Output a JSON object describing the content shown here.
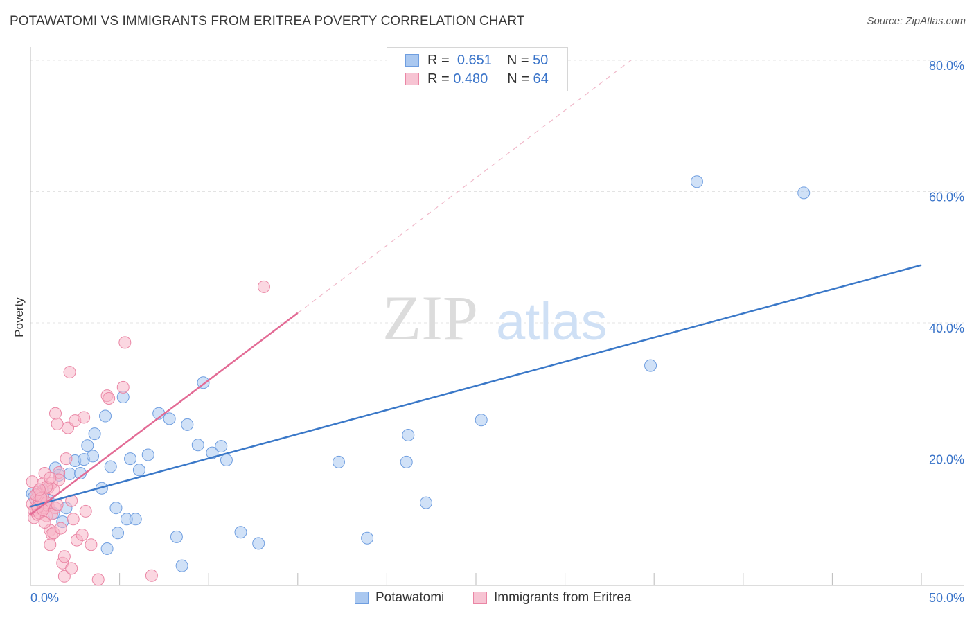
{
  "title": "POTAWATOMI VS IMMIGRANTS FROM ERITREA POVERTY CORRELATION CHART",
  "source": "Source: ZipAtlas.com",
  "watermark": {
    "zip": "ZIP",
    "atlas": "atlas"
  },
  "colors": {
    "blue_fill": "#aac8f0",
    "blue_stroke": "#6f9ee0",
    "blue_line": "#3a78c8",
    "pink_fill": "#f7b6c9",
    "pink_stroke": "#ea86a5",
    "pink_line": "#e36b95",
    "axis_text": "#3a74c9",
    "grid": "#e3e3e3"
  },
  "legend": {
    "rows": [
      {
        "r_label": "R =",
        "r_value": "0.651",
        "n_label": "N =",
        "n_value": "50"
      },
      {
        "r_label": "R =",
        "r_value": "0.480",
        "n_label": "N =",
        "n_value": "64"
      }
    ]
  },
  "bottom_legend": {
    "series1": "Potawatomi",
    "series2": "Immigrants from Eritrea"
  },
  "chart_data": {
    "type": "scatter",
    "title": "POTAWATOMI VS IMMIGRANTS FROM ERITREA POVERTY CORRELATION CHART",
    "xlabel": "",
    "ylabel": "Poverty",
    "xlim": [
      0,
      50
    ],
    "ylim": [
      0,
      80
    ],
    "x_tick_labels": [
      "0.0%",
      "50.0%"
    ],
    "y_tick_labels": [
      "20.0%",
      "40.0%",
      "60.0%",
      "80.0%"
    ],
    "y_ticks": [
      20,
      40,
      60,
      80
    ],
    "grid": true,
    "series": [
      {
        "name": "Potawatomi",
        "r": 0.651,
        "n": 50,
        "trend": {
          "x0": 0,
          "y0": 12.0,
          "x1": 50,
          "y1": 48.8
        },
        "points": [
          [
            0.1,
            14.0
          ],
          [
            0.2,
            13.5
          ],
          [
            0.5,
            12.9
          ],
          [
            0.7,
            14.5
          ],
          [
            1.0,
            13.0
          ],
          [
            1.3,
            11.0
          ],
          [
            1.4,
            17.9
          ],
          [
            1.6,
            16.8
          ],
          [
            1.8,
            9.7
          ],
          [
            2.0,
            11.8
          ],
          [
            2.2,
            17.0
          ],
          [
            2.5,
            19.0
          ],
          [
            2.8,
            17.1
          ],
          [
            3.0,
            19.2
          ],
          [
            3.2,
            21.3
          ],
          [
            3.5,
            19.7
          ],
          [
            3.6,
            23.1
          ],
          [
            4.0,
            14.8
          ],
          [
            4.2,
            25.8
          ],
          [
            4.3,
            5.6
          ],
          [
            4.5,
            18.1
          ],
          [
            4.8,
            11.8
          ],
          [
            4.9,
            8.0
          ],
          [
            5.2,
            28.7
          ],
          [
            5.4,
            10.1
          ],
          [
            5.6,
            19.3
          ],
          [
            5.9,
            10.1
          ],
          [
            6.1,
            17.6
          ],
          [
            6.6,
            19.9
          ],
          [
            7.2,
            26.2
          ],
          [
            7.8,
            25.4
          ],
          [
            8.2,
            7.4
          ],
          [
            8.5,
            3.0
          ],
          [
            8.8,
            24.5
          ],
          [
            9.4,
            21.4
          ],
          [
            9.7,
            30.9
          ],
          [
            10.2,
            20.2
          ],
          [
            10.7,
            21.2
          ],
          [
            11.0,
            19.1
          ],
          [
            11.8,
            8.1
          ],
          [
            12.8,
            6.4
          ],
          [
            17.3,
            18.8
          ],
          [
            18.9,
            7.2
          ],
          [
            21.1,
            18.8
          ],
          [
            21.2,
            22.9
          ],
          [
            22.2,
            12.6
          ],
          [
            25.3,
            25.2
          ],
          [
            34.8,
            33.5
          ],
          [
            37.4,
            61.5
          ],
          [
            43.4,
            59.8
          ]
        ]
      },
      {
        "name": "Immigrants from Eritrea",
        "r": 0.48,
        "n": 64,
        "trend": {
          "x0": 0,
          "y0": 10.8,
          "x1": 15.0,
          "y1": 41.5
        },
        "trend_extension": {
          "x0": 15.0,
          "y0": 41.5,
          "x1": 33.7,
          "y1": 80.0
        },
        "points": [
          [
            0.1,
            15.8
          ],
          [
            0.1,
            12.4
          ],
          [
            0.2,
            11.4
          ],
          [
            0.2,
            10.3
          ],
          [
            0.3,
            13.1
          ],
          [
            0.3,
            11.6
          ],
          [
            0.4,
            14.2
          ],
          [
            0.4,
            10.8
          ],
          [
            0.5,
            12.9
          ],
          [
            0.5,
            11.0
          ],
          [
            0.6,
            14.0
          ],
          [
            0.6,
            12.6
          ],
          [
            0.7,
            15.5
          ],
          [
            0.7,
            13.5
          ],
          [
            0.8,
            17.1
          ],
          [
            0.8,
            11.8
          ],
          [
            0.9,
            12.6
          ],
          [
            0.9,
            10.6
          ],
          [
            1.0,
            14.9
          ],
          [
            1.0,
            12.1
          ],
          [
            1.1,
            8.4
          ],
          [
            1.1,
            6.2
          ],
          [
            1.2,
            15.6
          ],
          [
            1.2,
            7.8
          ],
          [
            1.3,
            14.6
          ],
          [
            1.3,
            8.0
          ],
          [
            1.4,
            11.8
          ],
          [
            1.4,
            26.2
          ],
          [
            1.5,
            24.6
          ],
          [
            1.6,
            17.2
          ],
          [
            1.6,
            16.1
          ],
          [
            1.7,
            8.7
          ],
          [
            1.8,
            3.4
          ],
          [
            1.9,
            4.4
          ],
          [
            1.9,
            1.4
          ],
          [
            2.0,
            19.3
          ],
          [
            2.1,
            24.0
          ],
          [
            2.2,
            32.5
          ],
          [
            2.3,
            12.9
          ],
          [
            2.3,
            2.6
          ],
          [
            2.4,
            10.1
          ],
          [
            2.5,
            25.1
          ],
          [
            2.6,
            6.9
          ],
          [
            2.9,
            7.7
          ],
          [
            3.0,
            25.6
          ],
          [
            3.1,
            11.3
          ],
          [
            3.4,
            6.2
          ],
          [
            3.8,
            0.9
          ],
          [
            4.3,
            28.9
          ],
          [
            4.4,
            28.5
          ],
          [
            5.2,
            30.2
          ],
          [
            5.3,
            37.0
          ],
          [
            6.8,
            1.5
          ],
          [
            13.1,
            45.5
          ],
          [
            0.3,
            13.8
          ],
          [
            0.6,
            13.3
          ],
          [
            0.9,
            15.0
          ],
          [
            1.2,
            10.9
          ],
          [
            1.5,
            12.3
          ],
          [
            0.4,
            11.9
          ],
          [
            0.8,
            9.6
          ],
          [
            1.1,
            16.4
          ],
          [
            0.5,
            14.6
          ],
          [
            0.7,
            11.5
          ]
        ]
      }
    ]
  }
}
